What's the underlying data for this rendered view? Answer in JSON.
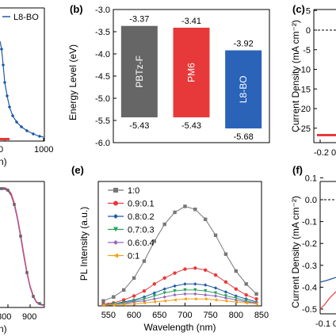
{
  "figure": {
    "panels": {
      "a": {
        "legend": "L8-BO",
        "x_ticks": [
          "0",
          "1000"
        ],
        "x_label_tail": "n)",
        "color": "#1f5aa6"
      },
      "b": {
        "letter": "(b)"
      },
      "c": {
        "letter": "(c)",
        "y_label": "Current Density (mA cm⁻²)",
        "y_ticks": [
          "5",
          "0",
          "-5",
          "-10",
          "-15",
          "-20",
          "-25"
        ],
        "x_ticks": [
          "-0.2",
          "0"
        ]
      },
      "d": {
        "x_ticks": [
          "800",
          "900"
        ],
        "x_label_tail": "n)"
      },
      "e": {
        "letter": "(e)"
      },
      "f": {
        "letter": "(f)",
        "y_label": "Current Density (mA cm⁻²)",
        "y_ticks": [
          "0.1",
          "0.0",
          "-0.1",
          "-0.2",
          "-0.3",
          "-0.4",
          "-0.5"
        ],
        "x_ticks": [
          "-0.1",
          "0"
        ]
      }
    }
  },
  "chart_data": [
    {
      "panel": "b",
      "type": "bar",
      "ylabel": "Energy Level (eV)",
      "ylim": [
        -6.0,
        -3.0
      ],
      "yticks": [
        "-3.0",
        "-3.5",
        "-4.0",
        "-4.5",
        "-5.0",
        "-5.5",
        "-6.0"
      ],
      "bars": [
        {
          "name": "PBTz-F",
          "top": -3.37,
          "bottom": -5.43,
          "top_label": "-3.37",
          "bottom_label": "-5.43",
          "color": "#666666"
        },
        {
          "name": "PM6",
          "top": -3.41,
          "bottom": -5.43,
          "top_label": "-3.41",
          "bottom_label": "-5.43",
          "color": "#e8393a"
        },
        {
          "name": "L8-BO",
          "top": -3.92,
          "bottom": -5.68,
          "top_label": "-3.92",
          "bottom_label": "-5.68",
          "color": "#2a63b8"
        }
      ]
    },
    {
      "panel": "e",
      "type": "line",
      "xlabel": "Wavelength (nm)",
      "ylabel": "PL Intensity (a.u.)",
      "xlim": [
        530,
        850
      ],
      "xticks": [
        "550",
        "600",
        "650",
        "700",
        "750",
        "800",
        "850"
      ],
      "ylim": [
        0,
        1.25
      ],
      "x": [
        540,
        560,
        580,
        600,
        620,
        640,
        660,
        680,
        700,
        720,
        740,
        760,
        780,
        800,
        820,
        840
      ],
      "series": [
        {
          "name": "1:0",
          "color": "#777777",
          "marker": "square",
          "values": [
            0.05,
            0.09,
            0.16,
            0.28,
            0.45,
            0.65,
            0.82,
            0.94,
            1.0,
            0.97,
            0.87,
            0.71,
            0.52,
            0.35,
            0.22,
            0.12
          ]
        },
        {
          "name": "0.9:0.1",
          "color": "#e8393a",
          "marker": "circle",
          "values": [
            0.02,
            0.03,
            0.06,
            0.1,
            0.15,
            0.22,
            0.28,
            0.33,
            0.37,
            0.38,
            0.36,
            0.31,
            0.24,
            0.17,
            0.11,
            0.07
          ]
        },
        {
          "name": "0.8:0.2",
          "color": "#1f5aa6",
          "marker": "diamond",
          "values": [
            0.01,
            0.02,
            0.04,
            0.06,
            0.09,
            0.13,
            0.17,
            0.2,
            0.22,
            0.22,
            0.21,
            0.18,
            0.14,
            0.1,
            0.07,
            0.04
          ]
        },
        {
          "name": "0.7:0.3",
          "color": "#2ca25f",
          "marker": "triangle-down",
          "values": [
            0.01,
            0.02,
            0.03,
            0.05,
            0.07,
            0.1,
            0.13,
            0.15,
            0.16,
            0.16,
            0.15,
            0.13,
            0.1,
            0.08,
            0.05,
            0.03
          ]
        },
        {
          "name": "0.6:0.4",
          "color": "#9467bd",
          "marker": "diamond",
          "values": [
            0.01,
            0.01,
            0.02,
            0.04,
            0.05,
            0.07,
            0.09,
            0.11,
            0.12,
            0.12,
            0.11,
            0.1,
            0.08,
            0.06,
            0.04,
            0.03
          ]
        },
        {
          "name": "0:1",
          "color": "#f0a21a",
          "marker": "triangle-left",
          "values": [
            0.005,
            0.01,
            0.015,
            0.02,
            0.03,
            0.04,
            0.05,
            0.06,
            0.07,
            0.07,
            0.07,
            0.06,
            0.05,
            0.04,
            0.03,
            0.02
          ]
        }
      ]
    }
  ]
}
